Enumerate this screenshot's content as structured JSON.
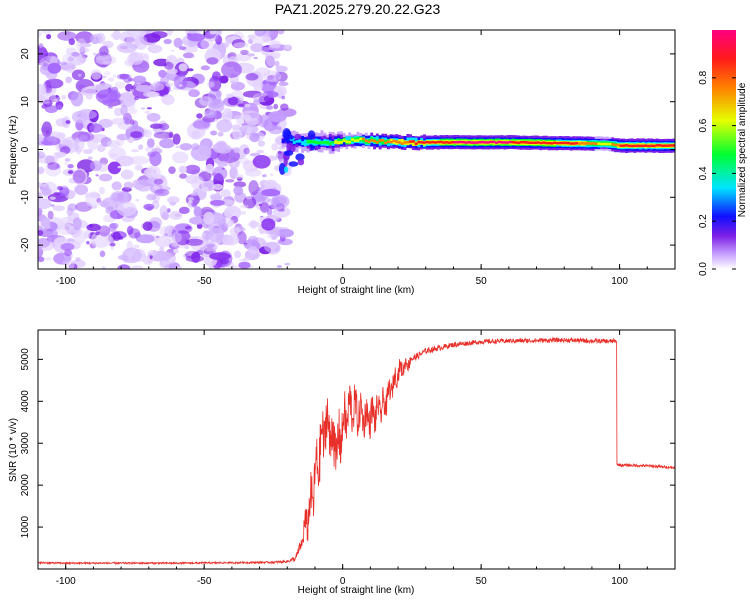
{
  "title": "PAZ1.2025.279.20.22.G23",
  "colors": {
    "snr_line": "#e8302a",
    "background_blobs": "#7a1ee6",
    "frame": "#000000"
  },
  "chart_data": [
    {
      "type": "heatmap",
      "name": "spectrogram",
      "xlabel": "Height of straight line (km)",
      "ylabel": "Frequency (Hz)",
      "xlim": [
        -110,
        120
      ],
      "ylim": [
        -25,
        25
      ],
      "xticks": [
        -100,
        -50,
        0,
        50,
        100
      ],
      "yticks": [
        -20,
        -10,
        0,
        10,
        20
      ],
      "xtick_labels": [
        "-100",
        "-50",
        "0",
        "50",
        "100"
      ],
      "ytick_labels": [
        "-20",
        "-10",
        "0",
        "10",
        "20"
      ],
      "noise_region_x": [
        -110,
        -22
      ],
      "signal_start_x": -22,
      "signal_frequency_hz": 1.2,
      "signal_line": [
        {
          "x": -22,
          "freq": 2.0,
          "amp": 0.25
        },
        {
          "x": -15,
          "freq": 1.5,
          "amp": 0.45
        },
        {
          "x": -5,
          "freq": 1.5,
          "amp": 0.6
        },
        {
          "x": 5,
          "freq": 2.0,
          "amp": 0.75
        },
        {
          "x": 20,
          "freq": 1.5,
          "amp": 0.85
        },
        {
          "x": 40,
          "freq": 1.5,
          "amp": 1.0
        },
        {
          "x": 60,
          "freq": 1.5,
          "amp": 1.0
        },
        {
          "x": 80,
          "freq": 1.3,
          "amp": 0.95
        },
        {
          "x": 95,
          "freq": 1.2,
          "amp": 0.7
        },
        {
          "x": 100,
          "freq": 0.8,
          "amp": 0.9
        },
        {
          "x": 120,
          "freq": 0.8,
          "amp": 0.9
        }
      ],
      "colorbar": {
        "label": "Normalized spectral amplitude",
        "range": [
          0,
          1
        ],
        "ticks": [
          0.0,
          0.2,
          0.4,
          0.6,
          0.8
        ],
        "tick_labels": [
          "0.0",
          "0.2",
          "0.4",
          "0.6",
          "0.8"
        ],
        "colormap": [
          "#ffffff",
          "#9b30ff",
          "#0000ff",
          "#00ffff",
          "#00ff00",
          "#ffff00",
          "#ff8000",
          "#ff0000",
          "#ff0080"
        ]
      }
    },
    {
      "type": "line",
      "name": "snr",
      "xlabel": "Height of straight line (km)",
      "ylabel": "SNR (10 * v/v)",
      "xlim": [
        -110,
        120
      ],
      "ylim": [
        0,
        5700
      ],
      "xticks": [
        -100,
        -50,
        0,
        50,
        100
      ],
      "yticks": [
        1000,
        2000,
        3000,
        4000,
        5000
      ],
      "xtick_labels": [
        "-100",
        "-50",
        "0",
        "50",
        "100"
      ],
      "ytick_labels": [
        "1000",
        "2000",
        "3000",
        "4000",
        "5000"
      ],
      "series": [
        {
          "name": "SNR",
          "x": [
            -110,
            -100,
            -80,
            -60,
            -40,
            -25,
            -20,
            -17,
            -15,
            -12,
            -10,
            -8,
            -6,
            -4,
            -2,
            0,
            3,
            6,
            10,
            15,
            20,
            25,
            30,
            40,
            50,
            60,
            70,
            80,
            90,
            98,
            99,
            100,
            110,
            120
          ],
          "y": [
            150,
            140,
            140,
            140,
            150,
            160,
            180,
            250,
            600,
            1400,
            2100,
            2900,
            3500,
            3200,
            2800,
            3400,
            3900,
            3700,
            3600,
            3900,
            4700,
            5000,
            5200,
            5350,
            5420,
            5440,
            5450,
            5460,
            5440,
            5430,
            2500,
            2480,
            2460,
            2420
          ],
          "noise_amplitude": [
            40,
            40,
            40,
            40,
            40,
            45,
            60,
            150,
            300,
            700,
            900,
            900,
            900,
            900,
            900,
            800,
            700,
            600,
            550,
            450,
            300,
            180,
            140,
            120,
            110,
            110,
            110,
            110,
            110,
            110,
            60,
            60,
            60,
            60
          ]
        }
      ]
    }
  ]
}
